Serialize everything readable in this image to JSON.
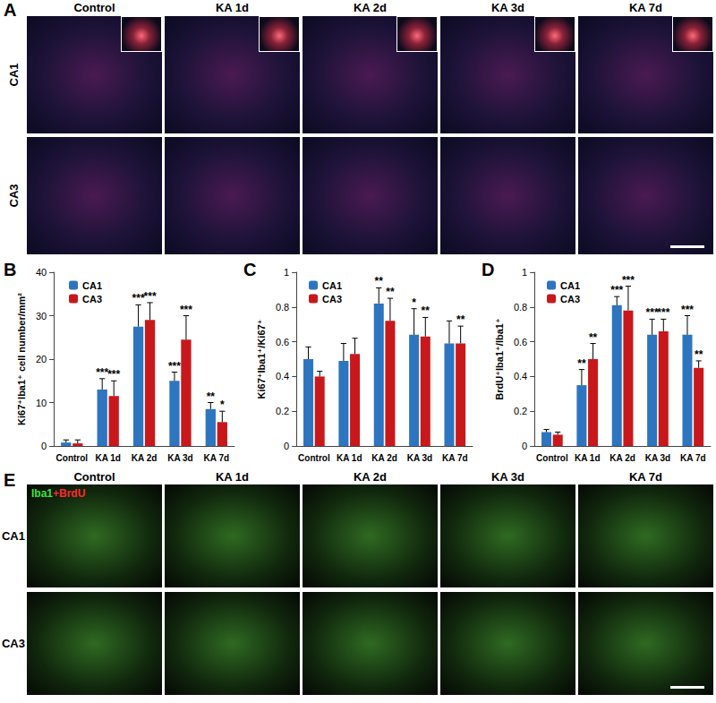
{
  "image_panels": [
    {
      "panel": "A",
      "columns": [
        "Control",
        "KA 1d",
        "KA 2d",
        "KA 3d",
        "KA 7d"
      ],
      "rows": [
        "CA1",
        "CA3"
      ]
    },
    {
      "panel": "E",
      "columns": [
        "Control",
        "KA 1d",
        "KA 2d",
        "KA 3d",
        "KA 7d"
      ],
      "rows": [
        "CA1",
        "CA3"
      ],
      "stain_label": [
        {
          "text": "Iba1",
          "color": "#3fe03a"
        },
        {
          "text": "+BrdU",
          "color": "#ff2a2a"
        }
      ]
    }
  ],
  "chart_data": [
    {
      "panel": "B",
      "type": "bar",
      "ylabel": "Ki67⁺Iba1⁺ cell number/mm²",
      "categories": [
        "Control",
        "KA 1d",
        "KA 2d",
        "KA 3d",
        "KA 7d"
      ],
      "series": [
        {
          "name": "CA1",
          "color": "#2e75c0",
          "values": [
            0.8,
            13,
            27.5,
            15,
            8.5
          ],
          "errors": [
            0.6,
            2.5,
            5,
            2,
            1.5
          ],
          "significance": [
            null,
            "***",
            "***",
            "***",
            "**"
          ]
        },
        {
          "name": "CA3",
          "color": "#c8181c",
          "values": [
            0.6,
            11.5,
            29,
            24.5,
            5.5
          ],
          "errors": [
            0.8,
            3.5,
            4,
            5.5,
            2.5
          ],
          "significance": [
            null,
            "***",
            "***",
            "***",
            "*"
          ]
        }
      ],
      "ylim": [
        0,
        40
      ],
      "yticks": [
        0,
        10,
        20,
        30,
        40
      ],
      "legend": "upper left",
      "grid": false
    },
    {
      "panel": "C",
      "type": "bar",
      "ylabel": "Ki67⁺Iba1⁺/Ki67⁺",
      "categories": [
        "Control",
        "KA 1d",
        "KA 2d",
        "KA 3d",
        "KA 7d"
      ],
      "series": [
        {
          "name": "CA1",
          "color": "#2e75c0",
          "values": [
            0.5,
            0.49,
            0.82,
            0.64,
            0.59
          ],
          "errors": [
            0.07,
            0.1,
            0.09,
            0.15,
            0.13
          ],
          "significance": [
            null,
            null,
            "**",
            "*",
            null
          ]
        },
        {
          "name": "CA3",
          "color": "#c8181c",
          "values": [
            0.4,
            0.53,
            0.72,
            0.63,
            0.59
          ],
          "errors": [
            0.03,
            0.09,
            0.13,
            0.11,
            0.1
          ],
          "significance": [
            null,
            null,
            "**",
            "**",
            "**"
          ]
        }
      ],
      "ylim": [
        0,
        1
      ],
      "yticks": [
        0,
        0.2,
        0.4,
        0.6,
        0.8,
        1
      ],
      "legend": "upper left",
      "grid": false
    },
    {
      "panel": "D",
      "type": "bar",
      "ylabel": "BrdU⁺Iba1⁺/Iba1⁺",
      "categories": [
        "Control",
        "KA 1d",
        "KA 2d",
        "KA 3d",
        "KA 7d"
      ],
      "series": [
        {
          "name": "CA1",
          "color": "#2e75c0",
          "values": [
            0.08,
            0.35,
            0.81,
            0.64,
            0.64
          ],
          "errors": [
            0.015,
            0.09,
            0.05,
            0.09,
            0.11
          ],
          "significance": [
            null,
            "**",
            "***",
            "***",
            "***"
          ]
        },
        {
          "name": "CA3",
          "color": "#c8181c",
          "values": [
            0.065,
            0.5,
            0.78,
            0.66,
            0.45
          ],
          "errors": [
            0.015,
            0.09,
            0.14,
            0.07,
            0.04
          ],
          "significance": [
            null,
            "**",
            "***",
            "***",
            "**"
          ]
        }
      ],
      "ylim": [
        0,
        1
      ],
      "yticks": [
        0,
        0.2,
        0.4,
        0.6,
        0.8,
        1
      ],
      "legend": "upper left",
      "grid": false
    }
  ]
}
